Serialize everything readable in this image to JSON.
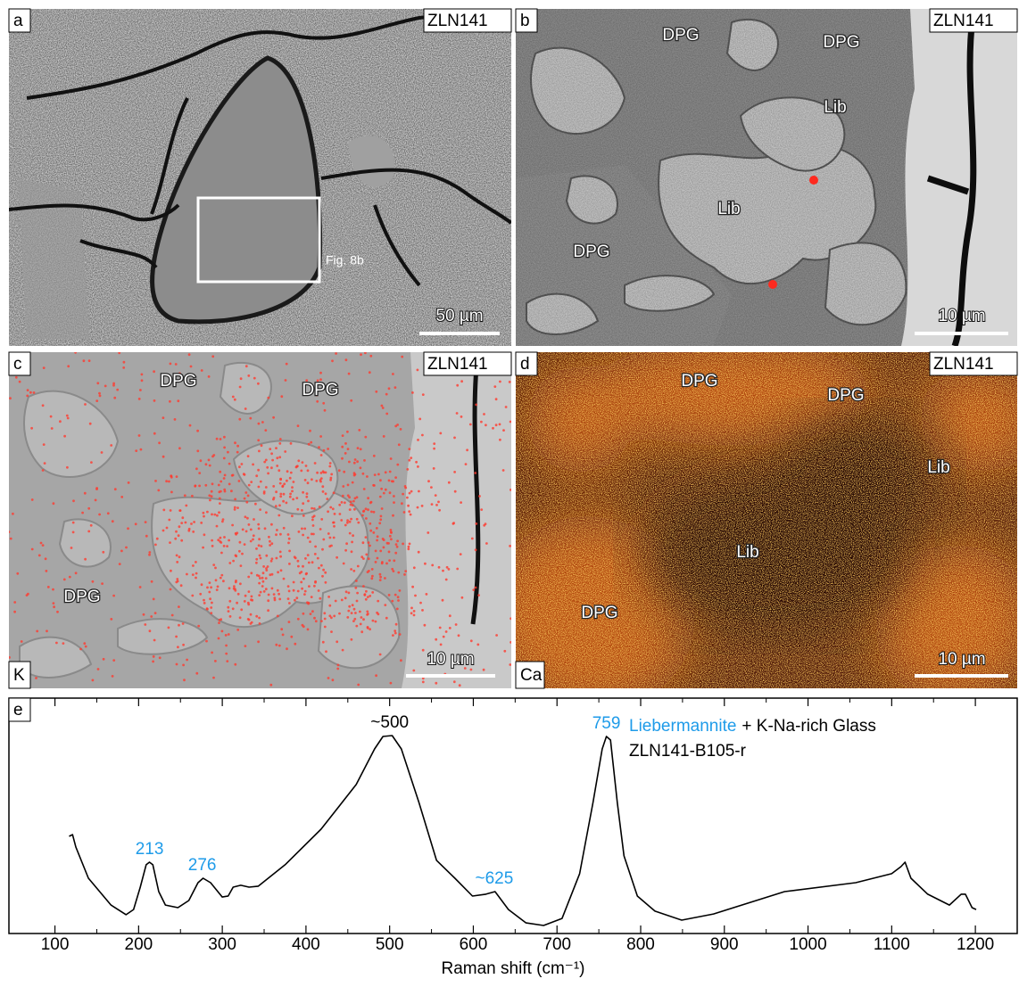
{
  "panels": [
    {
      "letter": "a",
      "sample": "ZLN141",
      "scale_bar": "50 µm",
      "inset": "Fig. 8b"
    },
    {
      "letter": "b",
      "sample": "ZLN141",
      "scale_bar": "10 µm",
      "labels": [
        "DPG",
        "DPG",
        "Lib",
        "Lib",
        "DPG"
      ]
    },
    {
      "letter": "c",
      "sample": "ZLN141",
      "scale_bar": "10 µm",
      "element": "K",
      "labels": [
        "DPG",
        "DPG",
        "DPG"
      ]
    },
    {
      "letter": "d",
      "sample": "ZLN141",
      "scale_bar": "10 µm",
      "element": "Ca",
      "labels": [
        "DPG",
        "DPG",
        "Lib",
        "Lib",
        "DPG"
      ]
    }
  ],
  "chart_data": {
    "type": "line",
    "panel": "e",
    "x_label": "Raman shift (cm⁻¹)",
    "mineral": "Liebermannite",
    "mineral_color": "#1e9be9",
    "phase_rest": "+ K-Na-rich Glass",
    "sample": "ZLN141-B105-r",
    "x": [
      117,
      121,
      125,
      140,
      167,
      185,
      194,
      202,
      209,
      213,
      217,
      224,
      232,
      247,
      260,
      271,
      277,
      286,
      300,
      307,
      313,
      322,
      332,
      343,
      375,
      418,
      460,
      482,
      492,
      503,
      514,
      535,
      556,
      578,
      599,
      615,
      626,
      642,
      663,
      684,
      706,
      727,
      743,
      754,
      759,
      764,
      772,
      780,
      796,
      817,
      849,
      887,
      972,
      1057,
      1100,
      1111,
      1116,
      1123,
      1143,
      1169,
      1183,
      1188,
      1196,
      1201
    ],
    "values": [
      41.3,
      42.0,
      36.7,
      23.5,
      12.1,
      8.0,
      10.2,
      19.7,
      29.2,
      30.3,
      29.2,
      17.8,
      12.1,
      11.0,
      14.0,
      21.6,
      23.5,
      21.6,
      15.5,
      15.9,
      19.7,
      20.5,
      19.7,
      20.1,
      29.2,
      44.3,
      63.3,
      78.4,
      83.7,
      84.1,
      78.4,
      55.7,
      31.1,
      23.5,
      15.9,
      16.7,
      17.8,
      10.2,
      4.5,
      3.4,
      6.4,
      25.4,
      55.7,
      78.4,
      83.7,
      82.2,
      55.7,
      33.0,
      15.9,
      9.5,
      5.7,
      8.3,
      17.8,
      21.6,
      25.4,
      28.4,
      30.3,
      23.5,
      16.7,
      12.1,
      16.7,
      16.7,
      11.0,
      10.2
    ],
    "color": "#000000",
    "annotations": [
      {
        "text": "213",
        "x": 213,
        "color": "#1e9be9"
      },
      {
        "text": "276",
        "x": 276,
        "color": "#1e9be9"
      },
      {
        "text": "~500",
        "x": 500,
        "color": "#000000"
      },
      {
        "text": "~625",
        "x": 625,
        "color": "#1e9be9"
      },
      {
        "text": "759",
        "x": 759,
        "color": "#1e9be9"
      }
    ],
    "xlim": [
      45,
      1250
    ],
    "ylim": [
      0,
      100
    ],
    "xticks": [
      100,
      200,
      300,
      400,
      500,
      600,
      700,
      800,
      900,
      1000,
      1100,
      1200
    ],
    "minor_xticks": [
      150,
      250,
      350,
      450,
      550,
      650,
      750,
      850,
      950,
      1050,
      1150
    ]
  }
}
